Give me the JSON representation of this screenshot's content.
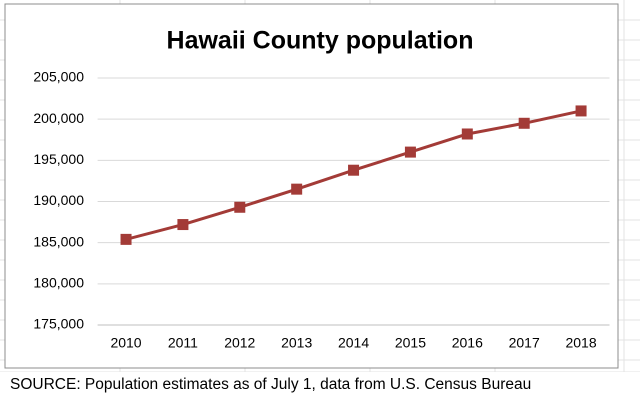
{
  "chart_data": {
    "type": "line",
    "title": "Hawaii County population",
    "categories": [
      "2010",
      "2011",
      "2012",
      "2013",
      "2014",
      "2015",
      "2016",
      "2017",
      "2018"
    ],
    "series": [
      {
        "name": "Population",
        "color": "#a33b37",
        "values": [
          185400,
          187200,
          189300,
          191500,
          193800,
          196000,
          198200,
          199500,
          201000
        ]
      }
    ],
    "ylim": [
      175000,
      205000
    ],
    "yticks": [
      {
        "value": 175000,
        "label": "175,000"
      },
      {
        "value": 180000,
        "label": "180,000"
      },
      {
        "value": 185000,
        "label": "185,000"
      },
      {
        "value": 190000,
        "label": "190,000"
      },
      {
        "value": 195000,
        "label": "195,000"
      },
      {
        "value": 200000,
        "label": "200,000"
      },
      {
        "value": 205000,
        "label": "205,000"
      }
    ],
    "grid": true,
    "legend": false,
    "source": "SOURCE: Population estimates as of July 1, data from U.S. Census Bureau"
  }
}
